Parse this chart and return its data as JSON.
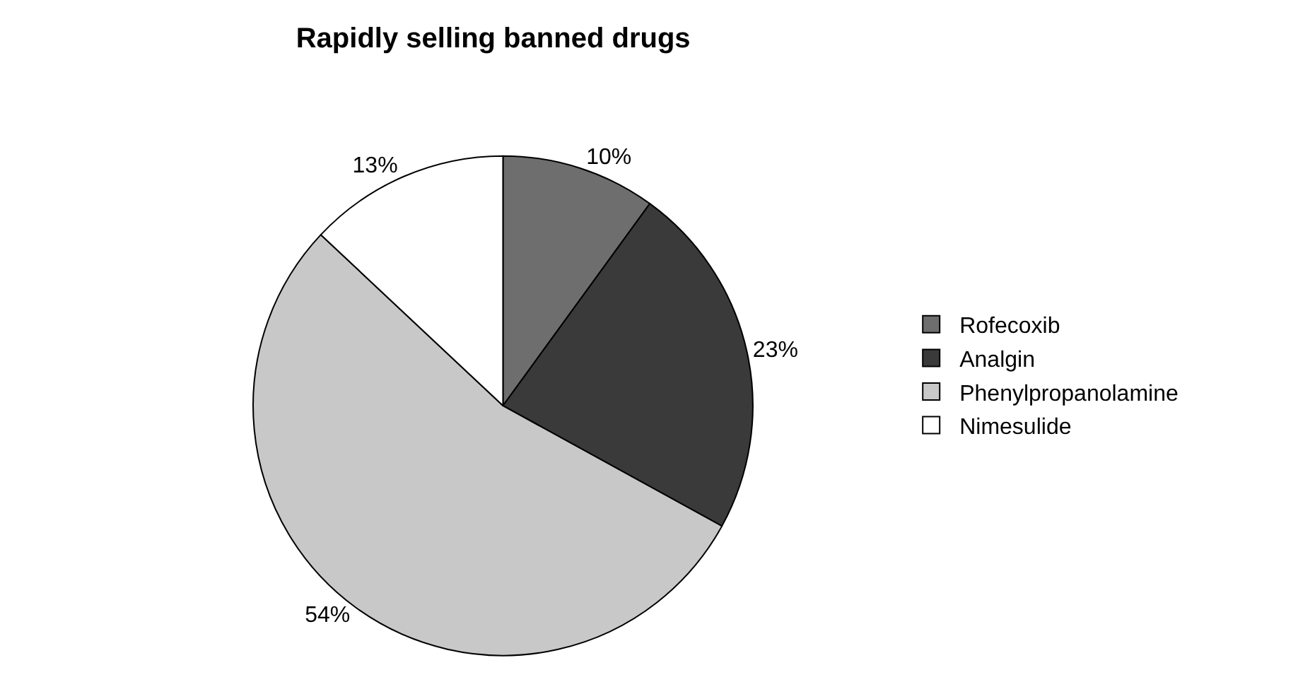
{
  "chart_data": {
    "type": "pie",
    "title": "Rapidly selling banned drugs",
    "categories": [
      "Rofecoxib",
      "Analgin",
      "Phenylpropanolamine",
      "Nimesulide"
    ],
    "values": [
      10,
      23,
      54,
      13
    ],
    "value_labels": [
      "10%",
      "23%",
      "54%",
      "13%"
    ],
    "colors": [
      "#6e6e6e",
      "#3a3a3a",
      "#c8c8c8",
      "#ffffff"
    ],
    "legend": "right"
  }
}
